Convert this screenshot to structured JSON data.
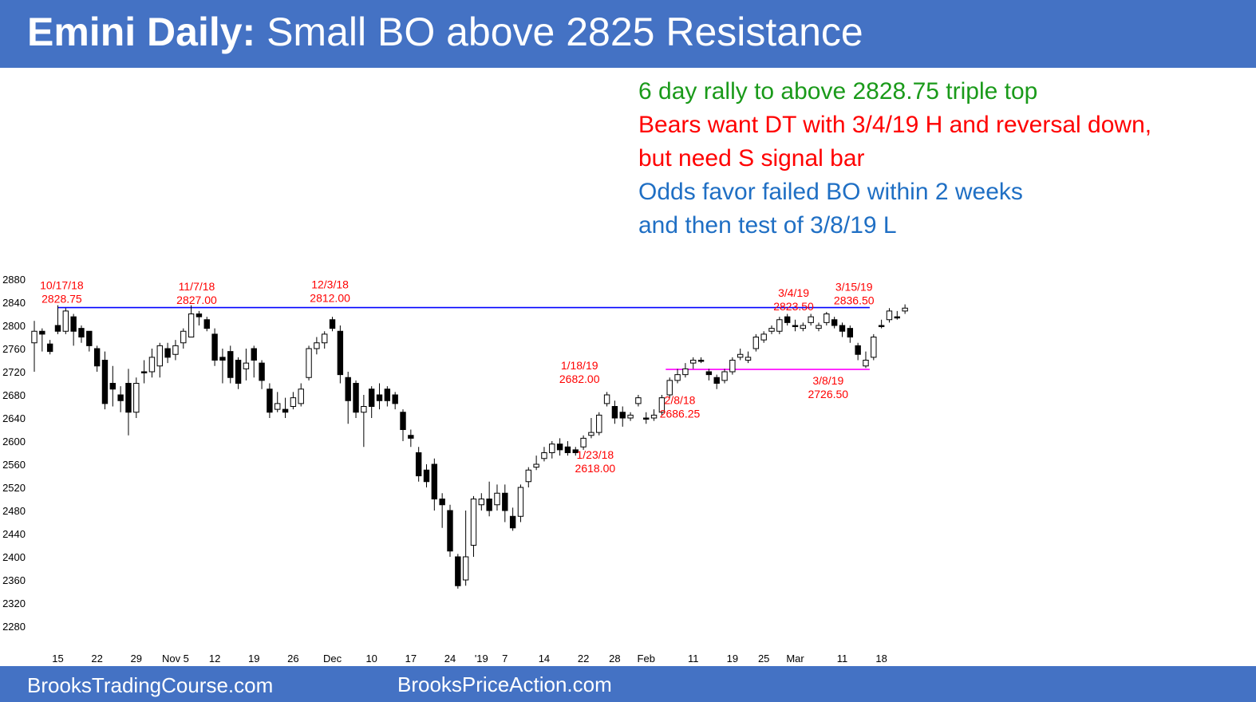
{
  "title": {
    "bold": "Emini Daily:",
    "rest": " Small BO above 2825 Resistance"
  },
  "notes": [
    {
      "text": "6 day rally to above 2828.75 triple top",
      "color": "#1a9a1a"
    },
    {
      "text": "Bears want DT with 3/4/19 H and reversal down,",
      "color": "#ff0000"
    },
    {
      "text": "but need S signal bar",
      "color": "#ff0000"
    },
    {
      "text": "Odds favor failed BO within 2 weeks",
      "color": "#1f6fc4"
    },
    {
      "text": "and then test of 3/8/19 L",
      "color": "#1f6fc4"
    }
  ],
  "footer": {
    "left": "BrooksTradingCourse.com",
    "right": "BrooksPriceAction.com"
  },
  "colors": {
    "banner": "#4472c4",
    "resistance": "#0000ff",
    "support": "#ff00ff",
    "label": "#ff0000"
  },
  "chart_data": {
    "type": "candlestick",
    "ylim": [
      2260,
      2880
    ],
    "y_ticks": [
      2880,
      2840,
      2800,
      2760,
      2720,
      2680,
      2640,
      2600,
      2560,
      2520,
      2480,
      2440,
      2400,
      2360,
      2320,
      2280
    ],
    "x_ticks": [
      {
        "label": "15",
        "i": 3
      },
      {
        "label": "22",
        "i": 8
      },
      {
        "label": "29",
        "i": 13
      },
      {
        "label": "Nov 5",
        "i": 18
      },
      {
        "label": "12",
        "i": 23
      },
      {
        "label": "19",
        "i": 28
      },
      {
        "label": "26",
        "i": 33
      },
      {
        "label": "Dec",
        "i": 38
      },
      {
        "label": "10",
        "i": 43
      },
      {
        "label": "17",
        "i": 48
      },
      {
        "label": "24",
        "i": 53
      },
      {
        "label": "'19",
        "i": 57
      },
      {
        "label": "7",
        "i": 60
      },
      {
        "label": "14",
        "i": 65
      },
      {
        "label": "22",
        "i": 70
      },
      {
        "label": "28",
        "i": 74
      },
      {
        "label": "Feb",
        "i": 78
      },
      {
        "label": "11",
        "i": 84
      },
      {
        "label": "19",
        "i": 89
      },
      {
        "label": "25",
        "i": 93
      },
      {
        "label": "Mar",
        "i": 97
      },
      {
        "label": "11",
        "i": 103
      },
      {
        "label": "18",
        "i": 108
      }
    ],
    "lines": [
      {
        "name": "resistance",
        "value": 2831,
        "from": 3,
        "to": 106.5
      },
      {
        "name": "support",
        "value": 2724,
        "from": 80.5,
        "to": 106.5
      }
    ],
    "annotations": [
      {
        "lines": [
          "10/17/18",
          "2828.75"
        ],
        "i": 3.5,
        "price": 2863
      },
      {
        "lines": [
          "11/7/18",
          "2827.00"
        ],
        "i": 20.7,
        "price": 2861
      },
      {
        "lines": [
          "12/3/18",
          "2812.00"
        ],
        "i": 37.7,
        "price": 2864
      },
      {
        "lines": [
          "1/18/19",
          "2682.00"
        ],
        "i": 69.5,
        "price": 2724
      },
      {
        "lines": [
          "1/23/18",
          "2618.00"
        ],
        "i": 71.5,
        "price": 2570
      },
      {
        "lines": [
          "2/8/18",
          "2686.25"
        ],
        "i": 82.3,
        "price": 2664
      },
      {
        "lines": [
          "3/4/19",
          "2823.50"
        ],
        "i": 96.8,
        "price": 2850
      },
      {
        "lines": [
          "3/15/19",
          "2836.50"
        ],
        "i": 104.5,
        "price": 2860
      },
      {
        "lines": [
          "3/8/19",
          "2726.50"
        ],
        "i": 101.2,
        "price": 2698
      }
    ],
    "candles": [
      [
        2770,
        2790,
        2808,
        2720
      ],
      [
        2790,
        2785,
        2795,
        2755
      ],
      [
        2768,
        2755,
        2775,
        2750
      ],
      [
        2800,
        2790,
        2835,
        2785
      ],
      [
        2790,
        2825,
        2830,
        2785
      ],
      [
        2815,
        2790,
        2820,
        2765
      ],
      [
        2795,
        2780,
        2800,
        2770
      ],
      [
        2790,
        2765,
        2790,
        2755
      ],
      [
        2760,
        2730,
        2765,
        2720
      ],
      [
        2740,
        2665,
        2755,
        2655
      ],
      [
        2700,
        2690,
        2730,
        2660
      ],
      [
        2680,
        2670,
        2695,
        2650
      ],
      [
        2700,
        2650,
        2725,
        2610
      ],
      [
        2650,
        2700,
        2710,
        2640
      ],
      [
        2720,
        2720,
        2740,
        2700
      ],
      [
        2720,
        2745,
        2760,
        2710
      ],
      [
        2730,
        2765,
        2770,
        2710
      ],
      [
        2760,
        2745,
        2770,
        2735
      ],
      [
        2750,
        2765,
        2775,
        2740
      ],
      [
        2770,
        2790,
        2795,
        2760
      ],
      [
        2780,
        2820,
        2835,
        2780
      ],
      [
        2820,
        2815,
        2825,
        2800
      ],
      [
        2810,
        2795,
        2815,
        2790
      ],
      [
        2785,
        2740,
        2795,
        2730
      ],
      [
        2745,
        2740,
        2760,
        2700
      ],
      [
        2755,
        2710,
        2765,
        2700
      ],
      [
        2740,
        2700,
        2745,
        2690
      ],
      [
        2725,
        2735,
        2760,
        2705
      ],
      [
        2760,
        2740,
        2765,
        2710
      ],
      [
        2735,
        2705,
        2740,
        2690
      ],
      [
        2690,
        2650,
        2700,
        2640
      ],
      [
        2655,
        2665,
        2685,
        2650
      ],
      [
        2655,
        2650,
        2675,
        2640
      ],
      [
        2660,
        2675,
        2685,
        2655
      ],
      [
        2665,
        2690,
        2700,
        2660
      ],
      [
        2710,
        2760,
        2765,
        2705
      ],
      [
        2760,
        2770,
        2780,
        2750
      ],
      [
        2770,
        2785,
        2790,
        2760
      ],
      [
        2810,
        2795,
        2815,
        2790
      ],
      [
        2790,
        2715,
        2800,
        2700
      ],
      [
        2710,
        2670,
        2720,
        2630
      ],
      [
        2700,
        2650,
        2705,
        2640
      ],
      [
        2650,
        2660,
        2680,
        2590
      ],
      [
        2690,
        2660,
        2695,
        2640
      ],
      [
        2680,
        2670,
        2700,
        2655
      ],
      [
        2690,
        2670,
        2695,
        2660
      ],
      [
        2680,
        2665,
        2685,
        2655
      ],
      [
        2650,
        2620,
        2655,
        2600
      ],
      [
        2610,
        2605,
        2620,
        2590
      ],
      [
        2580,
        2540,
        2590,
        2530
      ],
      [
        2550,
        2530,
        2560,
        2520
      ],
      [
        2560,
        2500,
        2570,
        2480
      ],
      [
        2500,
        2490,
        2510,
        2450
      ],
      [
        2480,
        2410,
        2490,
        2400
      ],
      [
        2400,
        2350,
        2405,
        2345
      ],
      [
        2360,
        2400,
        2480,
        2350
      ],
      [
        2420,
        2500,
        2505,
        2400
      ],
      [
        2490,
        2500,
        2510,
        2480
      ],
      [
        2500,
        2480,
        2530,
        2470
      ],
      [
        2490,
        2510,
        2525,
        2480
      ],
      [
        2510,
        2480,
        2525,
        2460
      ],
      [
        2470,
        2450,
        2485,
        2445
      ],
      [
        2470,
        2520,
        2525,
        2460
      ],
      [
        2530,
        2550,
        2555,
        2520
      ],
      [
        2555,
        2560,
        2575,
        2550
      ],
      [
        2570,
        2580,
        2590,
        2565
      ],
      [
        2580,
        2595,
        2600,
        2570
      ],
      [
        2595,
        2585,
        2605,
        2575
      ],
      [
        2590,
        2580,
        2600,
        2575
      ],
      [
        2585,
        2580,
        2590,
        2575
      ],
      [
        2590,
        2605,
        2610,
        2585
      ],
      [
        2610,
        2615,
        2640,
        2605
      ],
      [
        2615,
        2645,
        2650,
        2610
      ],
      [
        2665,
        2680,
        2685,
        2660
      ],
      [
        2660,
        2640,
        2670,
        2630
      ],
      [
        2650,
        2640,
        2660,
        2625
      ],
      [
        2640,
        2645,
        2650,
        2635
      ],
      [
        2665,
        2675,
        2680,
        2660
      ],
      [
        2640,
        2640,
        2650,
        2630
      ],
      [
        2640,
        2645,
        2655,
        2635
      ],
      [
        2650,
        2675,
        2680,
        2645
      ],
      [
        2680,
        2705,
        2710,
        2675
      ],
      [
        2705,
        2715,
        2725,
        2700
      ],
      [
        2715,
        2725,
        2735,
        2710
      ],
      [
        2735,
        2740,
        2745,
        2725
      ],
      [
        2740,
        2740,
        2745,
        2735
      ],
      [
        2720,
        2715,
        2725,
        2705
      ],
      [
        2710,
        2700,
        2715,
        2690
      ],
      [
        2705,
        2720,
        2725,
        2700
      ],
      [
        2720,
        2740,
        2745,
        2715
      ],
      [
        2745,
        2750,
        2760,
        2740
      ],
      [
        2740,
        2745,
        2755,
        2735
      ],
      [
        2760,
        2780,
        2785,
        2755
      ],
      [
        2775,
        2785,
        2790,
        2770
      ],
      [
        2790,
        2795,
        2800,
        2785
      ],
      [
        2790,
        2810,
        2815,
        2785
      ],
      [
        2815,
        2805,
        2820,
        2800
      ],
      [
        2800,
        2800,
        2810,
        2790
      ],
      [
        2795,
        2800,
        2805,
        2790
      ],
      [
        2805,
        2815,
        2820,
        2800
      ],
      [
        2795,
        2800,
        2805,
        2790
      ],
      [
        2805,
        2820,
        2823.5,
        2800
      ],
      [
        2810,
        2800,
        2815,
        2795
      ],
      [
        2800,
        2790,
        2805,
        2780
      ],
      [
        2795,
        2780,
        2800,
        2770
      ],
      [
        2765,
        2750,
        2770,
        2740
      ],
      [
        2730,
        2740,
        2755,
        2726.5
      ],
      [
        2745,
        2780,
        2785,
        2740
      ],
      [
        2800,
        2800,
        2810,
        2795
      ],
      [
        2810,
        2825,
        2830,
        2805
      ],
      [
        2815,
        2815,
        2825,
        2810
      ],
      [
        2825,
        2830,
        2836.5,
        2820
      ]
    ]
  }
}
